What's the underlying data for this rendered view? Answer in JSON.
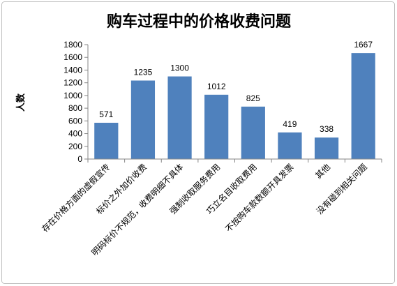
{
  "chart_data": {
    "type": "bar",
    "title": "购车过程中的价格收费问题",
    "ylabel": "人数",
    "categories": [
      "存在价格方面的虚假宣传",
      "标价之外加价收费",
      "明码标价不规范，收费明细不具体",
      "强制收取服务费用",
      "巧立名目收取费用",
      "不按购车款数额开具发票",
      "其他",
      "没有碰到相关问题"
    ],
    "values": [
      571,
      1235,
      1300,
      1012,
      825,
      419,
      338,
      1667
    ],
    "ylim": [
      0,
      1800
    ],
    "yticks": [
      0,
      200,
      400,
      600,
      800,
      1000,
      1200,
      1400,
      1600,
      1800
    ],
    "grid": false,
    "colors": {
      "bar": "#4f81bd",
      "axis": "#868686",
      "text": "#000000",
      "border": "#bfbfbf",
      "background": "#ffffff"
    }
  }
}
